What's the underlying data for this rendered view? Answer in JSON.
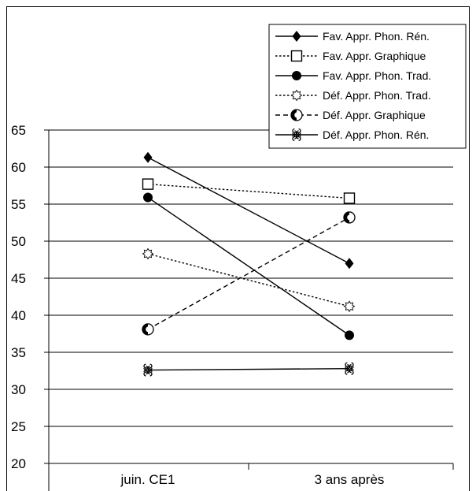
{
  "chart_data": {
    "type": "line",
    "title": "",
    "xlabel": "",
    "ylabel": "",
    "categories": [
      "juin. CE1",
      "3 ans après"
    ],
    "ylim": [
      20,
      65
    ],
    "yticks": [
      20,
      25,
      30,
      35,
      40,
      45,
      50,
      55,
      60,
      65
    ],
    "grid": "horizontal",
    "legend_position": "top-right",
    "series": [
      {
        "name": "Fav. Appr. Phon. Rén.",
        "values": [
          61.3,
          47.0
        ],
        "marker": "diamond-filled",
        "line": "solid",
        "color": "#000000"
      },
      {
        "name": "Fav. Appr. Graphique",
        "values": [
          57.7,
          55.8
        ],
        "marker": "square-open",
        "line": "dotted",
        "color": "#000000"
      },
      {
        "name": "Fav. Appr. Phon. Trad.",
        "values": [
          55.9,
          37.3
        ],
        "marker": "circle-filled",
        "line": "solid",
        "color": "#000000"
      },
      {
        "name": "Déf. Appr. Phon. Trad.",
        "values": [
          48.3,
          41.2
        ],
        "marker": "sun-open",
        "line": "dotted",
        "color": "#000000"
      },
      {
        "name": "Déf. Appr. Graphique",
        "values": [
          38.1,
          53.2
        ],
        "marker": "circle-half",
        "line": "dashed",
        "color": "#000000"
      },
      {
        "name": "Déf. Appr. Phon. Rén.",
        "values": [
          32.6,
          32.8
        ],
        "marker": "command",
        "line": "solid",
        "color": "#000000"
      }
    ]
  }
}
